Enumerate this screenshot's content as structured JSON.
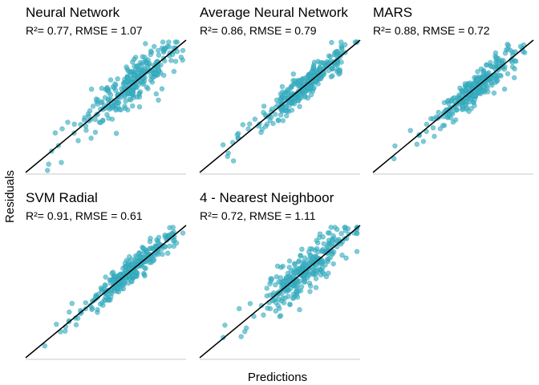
{
  "figure": {
    "ylabel": "Residuals",
    "xlabel": "Predictions",
    "point_color": "#3bb0c3",
    "line_color": "#000000",
    "axis_color": "#c8c8c8"
  },
  "chart_data": [
    {
      "type": "scatter",
      "title": "Neural Network",
      "subtitle": "R²= 0.77, RMSE = 1.07",
      "r2": 0.77,
      "rmse": 1.07,
      "xlim": [
        0,
        10
      ],
      "ylim": [
        0,
        10
      ],
      "n": 300
    },
    {
      "type": "scatter",
      "title": "Average Neural Network",
      "subtitle": "R²= 0.86, RMSE = 0.79",
      "r2": 0.86,
      "rmse": 0.79,
      "xlim": [
        0,
        10
      ],
      "ylim": [
        0,
        10
      ],
      "n": 300
    },
    {
      "type": "scatter",
      "title": "MARS",
      "subtitle": "R²= 0.88, RMSE = 0.72",
      "r2": 0.88,
      "rmse": 0.72,
      "xlim": [
        0,
        10
      ],
      "ylim": [
        0,
        10
      ],
      "n": 300
    },
    {
      "type": "scatter",
      "title": "SVM Radial",
      "subtitle": "R²= 0.91, RMSE = 0.61",
      "r2": 0.91,
      "rmse": 0.61,
      "xlim": [
        0,
        10
      ],
      "ylim": [
        0,
        10
      ],
      "n": 300
    },
    {
      "type": "scatter",
      "title": "4 - Nearest Neighboor",
      "subtitle": "R²= 0.72, RMSE = 1.11",
      "r2": 0.72,
      "rmse": 1.11,
      "xlim": [
        0,
        10
      ],
      "ylim": [
        0,
        10
      ],
      "n": 300
    }
  ]
}
